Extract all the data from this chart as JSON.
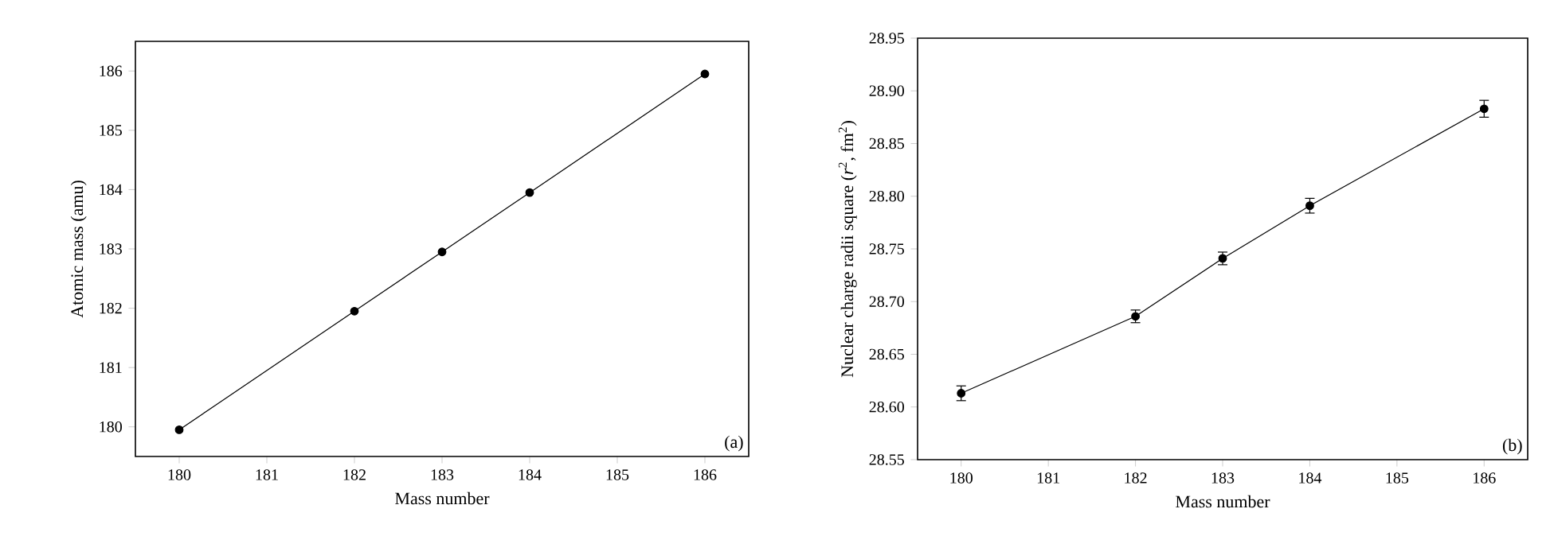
{
  "chart_data": [
    {
      "type": "line",
      "xlabel": "Mass number",
      "ylabel": "Atomic mass (amu)",
      "x": [
        180,
        182,
        183,
        184,
        186
      ],
      "values": [
        179.95,
        181.95,
        182.95,
        183.95,
        185.95
      ],
      "color": "#000000",
      "marker": "circle",
      "line_style": "solid",
      "xlim": [
        179.5,
        186.5
      ],
      "ylim": [
        179.5,
        186.5
      ],
      "xticks": [
        180,
        181,
        182,
        183,
        184,
        185,
        186
      ],
      "yticks": [
        180,
        181,
        182,
        183,
        184,
        185,
        186
      ],
      "annotations": [
        "(a)"
      ],
      "grid": false
    },
    {
      "type": "line",
      "xlabel": "Mass number",
      "ylabel": "Nuclear charge radii square (*r*$^{2}$, fm$^{2}$)",
      "x": [
        180,
        182,
        183,
        184,
        186
      ],
      "values": [
        28.613,
        28.686,
        28.741,
        28.791,
        28.883
      ],
      "errors": [
        0.007,
        0.006,
        0.006,
        0.007,
        0.008
      ],
      "color": "#000000",
      "marker": "circle",
      "line_style": "solid",
      "xlim": [
        179.5,
        186.5
      ],
      "ylim": [
        28.55,
        28.95
      ],
      "xticks": [
        180,
        181,
        182,
        183,
        184,
        185,
        186
      ],
      "yticks": [
        {
          "value": 28.55,
          "label": "28.55"
        },
        {
          "value": 28.6,
          "label": "28.60"
        },
        {
          "value": 28.65,
          "label": "28.65"
        },
        {
          "value": 28.7,
          "label": "28.70"
        },
        {
          "value": 28.75,
          "label": "28.75"
        },
        {
          "value": 28.8,
          "label": "28.80"
        },
        {
          "value": 28.85,
          "label": "28.85"
        },
        {
          "value": 28.9,
          "label": "28.90"
        },
        {
          "value": 28.95,
          "label": "28.95"
        }
      ],
      "annotations": [
        "(b)"
      ],
      "grid": false
    }
  ]
}
